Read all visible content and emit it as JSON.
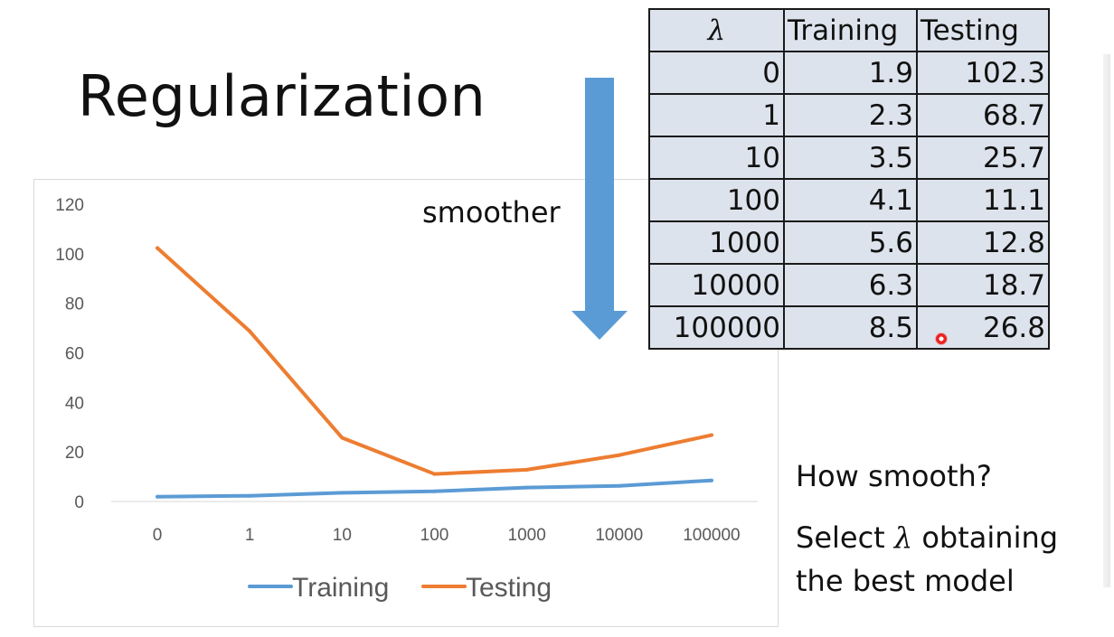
{
  "slide": {
    "title": "Regularization",
    "arrow_label": "smoother",
    "arrow_color": "#5b9bd5",
    "notes": {
      "line1": "How smooth?",
      "line2_pre": "Select",
      "line2_symbol": "λ",
      "line2_post": "obtaining",
      "line3": "the best model"
    }
  },
  "table": {
    "headers": [
      "λ",
      "Training",
      "Testing"
    ],
    "rows": [
      [
        "0",
        "1.9",
        "102.3"
      ],
      [
        "1",
        "2.3",
        "68.7"
      ],
      [
        "10",
        "3.5",
        "25.7"
      ],
      [
        "100",
        "4.1",
        "11.1"
      ],
      [
        "1000",
        "5.6",
        "12.8"
      ],
      [
        "10000",
        "6.3",
        "18.7"
      ],
      [
        "100000",
        "8.5",
        "26.8"
      ]
    ],
    "cell_color": "#dde3ec"
  },
  "chart_data": {
    "type": "line",
    "categories": [
      "0",
      "1",
      "10",
      "100",
      "1000",
      "10000",
      "100000"
    ],
    "series": [
      {
        "name": "Training",
        "values": [
          1.9,
          2.3,
          3.5,
          4.1,
          5.6,
          6.3,
          8.5
        ],
        "color": "#5b9bd5"
      },
      {
        "name": "Testing",
        "values": [
          102.3,
          68.7,
          25.7,
          11.1,
          12.8,
          18.7,
          26.8
        ],
        "color": "#ed7d31"
      }
    ],
    "ylim": [
      0,
      120
    ],
    "yticks": [
      "0",
      "20",
      "40",
      "60",
      "80",
      "100",
      "120"
    ],
    "grid": false,
    "legend": "bottom"
  }
}
